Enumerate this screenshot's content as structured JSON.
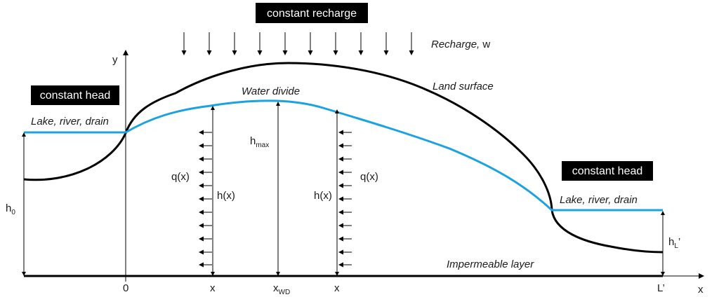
{
  "boxes": {
    "top": "constant recharge",
    "left": "constant head",
    "right": "constant head"
  },
  "labels": {
    "recharge_prefix": "Recharge, ",
    "recharge_symbol": "w",
    "land_surface": "Land surface",
    "water_divide": "Water divide",
    "lake_left": "Lake, river, drain",
    "lake_right": "Lake, river, drain",
    "impermeable": "Impermeable layer",
    "y_axis": "y",
    "x_axis": "x"
  },
  "symbols": {
    "h_max_base": "h",
    "h_max_sub": "max",
    "h0_base": "h",
    "h0_sub": "0",
    "hL_base": "h",
    "hL_sub": "L",
    "hL_prime": "’",
    "hx_left": "h(x)",
    "hx_right": "h(x)",
    "qx_left": "q(x)",
    "qx_right": "q(x)"
  },
  "ticks": {
    "zero": "0",
    "x1": "x",
    "xwd_base": "x",
    "xwd_sub": "WD",
    "x2": "x",
    "L": "L’"
  },
  "colors": {
    "water_table": "#1aa3e0",
    "ground": "#000000",
    "box_bg": "#000000",
    "box_text": "#ffffff"
  },
  "icons": {
    "recharge_arrow": "down-arrow-icon",
    "flow_arrow": "left-arrow-icon"
  }
}
